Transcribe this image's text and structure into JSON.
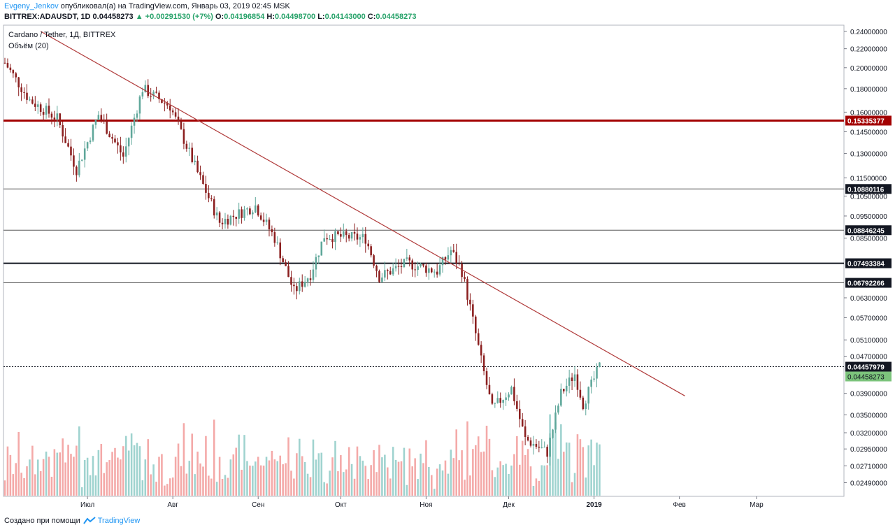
{
  "header": {
    "author": "Evgeny_Jenkov",
    "published_text": "опубликовал(а) на TradingView.com, Январь 03, 2019 02:45 MSK",
    "symbol": "BITTREX:ADAUSDT, 1D",
    "last_price": "0.04458273",
    "change": "+0.00291530 (+7%)",
    "o_label": "O:",
    "o_value": "0.04196854",
    "h_label": "H:",
    "h_value": "0.04498700",
    "l_label": "L:",
    "l_value": "0.04143000",
    "c_label": "C:",
    "c_value": "0.04458273"
  },
  "legend": {
    "title": "Cardano / Tether, 1Д, BITTREX",
    "volume": "Объём (20)"
  },
  "footer": {
    "created_with": "Создано при помощи",
    "brand": "TradingView"
  },
  "colors": {
    "up": "#5fa79a",
    "down": "#8b1f1f",
    "volume_up": "#9fd3cf",
    "volume_down": "#f4a9a8",
    "resistance": "#a30000",
    "trend": "#b03a3a",
    "level": "#555555",
    "current": "#7cc47c"
  },
  "chart_data": {
    "type": "candlestick",
    "x_ticks": [
      "Июл",
      "Авг",
      "Сен",
      "Окт",
      "Ноя",
      "Дек",
      "2019",
      "Фев",
      "Мар"
    ],
    "y_ticks": [
      "0.24000000",
      "0.22000000",
      "0.20000000",
      "0.18000000",
      "0.16000000",
      "0.14500000",
      "0.13000000",
      "0.11500000",
      "0.10500000",
      "0.09500000",
      "0.08500000",
      "0.06300000",
      "0.05700000",
      "0.05100000",
      "0.04700000",
      "0.03900000",
      "0.03500000",
      "0.03200000",
      "0.02950000",
      "0.02710000",
      "0.02490000"
    ],
    "scale": "log",
    "ylim": [
      0.0235,
      0.245
    ],
    "horizontal_levels": [
      {
        "value": 0.15335377,
        "label": "0.15335377",
        "style": "resistance"
      },
      {
        "value": 0.10880116,
        "label": "0.10880116",
        "style": "level"
      },
      {
        "value": 0.08846245,
        "label": "0.08846245",
        "style": "level"
      },
      {
        "value": 0.07493384,
        "label": "0.07493384",
        "style": "bold"
      },
      {
        "value": 0.06792266,
        "label": "0.06792266",
        "style": "level"
      },
      {
        "value": 0.04457979,
        "label": "0.04457979",
        "style": "dashed"
      }
    ],
    "current_price": {
      "value": 0.04458273,
      "label": "0.04458273"
    },
    "trendline": {
      "from": {
        "date": "2018-06-14",
        "value": 0.24
      },
      "to": {
        "date": "2019-02-03",
        "value": 0.0385
      }
    },
    "anchors": [
      [
        "2018-06-01",
        0.205
      ],
      [
        "2018-06-10",
        0.17
      ],
      [
        "2018-06-20",
        0.155
      ],
      [
        "2018-06-27",
        0.12
      ],
      [
        "2018-07-05",
        0.158
      ],
      [
        "2018-07-14",
        0.128
      ],
      [
        "2018-07-21",
        0.18
      ],
      [
        "2018-07-31",
        0.165
      ],
      [
        "2018-08-10",
        0.118
      ],
      [
        "2018-08-18",
        0.092
      ],
      [
        "2018-08-31",
        0.1
      ],
      [
        "2018-09-07",
        0.085
      ],
      [
        "2018-09-14",
        0.065
      ],
      [
        "2018-09-20",
        0.071
      ],
      [
        "2018-09-25",
        0.086
      ],
      [
        "2018-10-10",
        0.085
      ],
      [
        "2018-10-15",
        0.07
      ],
      [
        "2018-10-25",
        0.075
      ],
      [
        "2018-11-05",
        0.072
      ],
      [
        "2018-11-10",
        0.08
      ],
      [
        "2018-11-14",
        0.072
      ],
      [
        "2018-11-17",
        0.06
      ],
      [
        "2018-11-21",
        0.046
      ],
      [
        "2018-11-25",
        0.036
      ],
      [
        "2018-12-02",
        0.04
      ],
      [
        "2018-12-07",
        0.031
      ],
      [
        "2018-12-15",
        0.029
      ],
      [
        "2018-12-20",
        0.039
      ],
      [
        "2018-12-25",
        0.043
      ],
      [
        "2018-12-28",
        0.037
      ],
      [
        "2019-01-03",
        0.0446
      ]
    ]
  }
}
